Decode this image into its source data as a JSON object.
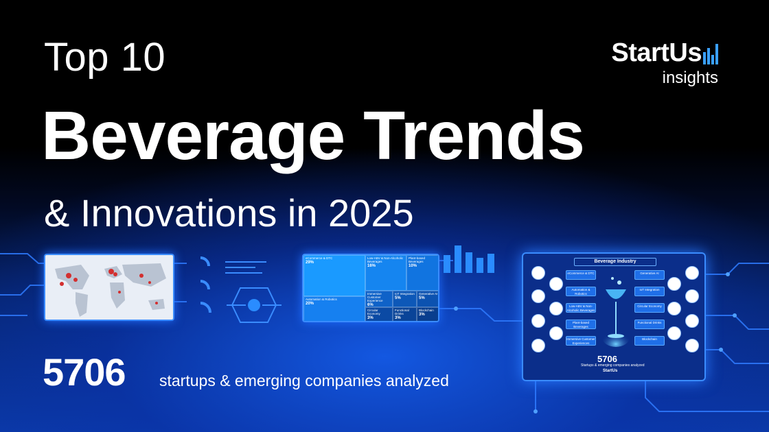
{
  "heading": {
    "top": "Top 10",
    "main": "Beverage Trends",
    "sub": "& Innovations in 2025"
  },
  "brand": {
    "name": "StartUs",
    "tagline": "insights",
    "accent": "#3aa0ff"
  },
  "stats": {
    "count": "5706",
    "label": "startups & emerging companies analyzed"
  },
  "colors": {
    "background_top": "#000000",
    "background_bottom": "#0b3aa8",
    "panel_border": "#3a8cff"
  },
  "gauges": [
    "",
    "",
    ""
  ],
  "treemap": {
    "cells": [
      {
        "label": "eCommerce & DTC",
        "value": "29%"
      },
      {
        "label": "Low-ABV & Non-Alcoholic Beverages",
        "value": "16%"
      },
      {
        "label": "Plant-based Beverages",
        "value": "10%"
      },
      {
        "label": "Automation & Robotics",
        "value": "20%"
      },
      {
        "label": "Immersive Customer Experience",
        "value": "6%"
      },
      {
        "label": "IoT Integration",
        "value": "5%"
      },
      {
        "label": "Generative AI",
        "value": "5%"
      },
      {
        "label": "Circular Economy",
        "value": "3%"
      },
      {
        "label": "Functional Drinks",
        "value": "3%"
      },
      {
        "label": "Blockchain",
        "value": "3%"
      }
    ]
  },
  "infographic": {
    "title": "Beverage Industry",
    "left_trends": [
      "eCommerce & DTC",
      "Automation & Robotics",
      "Low-ABV & Non-Alcoholic Beverages",
      "Plant-based Beverages",
      "Immersive Customer Experiences"
    ],
    "right_trends": [
      "Generative AI",
      "IoT Integration",
      "Circular Economy",
      "Functional Drinks",
      "Blockchain"
    ],
    "left_logos": [
      "",
      "",
      "",
      "",
      "",
      "",
      ""
    ],
    "right_logos": [
      "",
      "",
      "",
      "",
      "",
      "",
      ""
    ],
    "count": "5706",
    "caption": "Startups & emerging companies analyzed",
    "logo": "StartUs"
  }
}
